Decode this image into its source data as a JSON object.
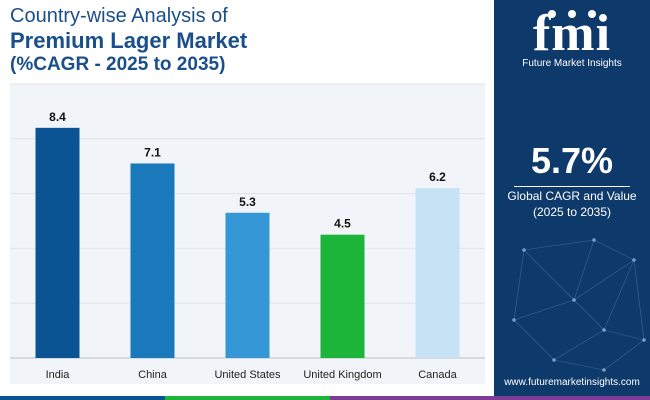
{
  "header": {
    "line1": "Country-wise Analysis of",
    "line2": "Premium Lager Market",
    "line3": "(%CAGR - 2025 to 2035)"
  },
  "chart_data": {
    "type": "bar",
    "categories": [
      "India",
      "China",
      "United States",
      "United Kingdom",
      "Canada"
    ],
    "values": [
      8.4,
      7.1,
      5.3,
      4.5,
      6.2
    ],
    "colors": [
      "#0b5494",
      "#1a79ba",
      "#3597d5",
      "#1cb53a",
      "#c6e2f4"
    ],
    "ylim": [
      0,
      10
    ],
    "grid": true
  },
  "side_panel": {
    "logo_text": "fmi",
    "logo_tagline": "Future Market Insights",
    "cagr_value": "5.7%",
    "cagr_label_line1": "Global CAGR and Value",
    "cagr_label_line2": "(2025 to 2035)",
    "website": "www.futuremarketinsights.com"
  },
  "colors": {
    "title": "#1a4f8c",
    "panel_bg": "#0e3a6b",
    "chart_bg": "#f1f4f8",
    "bottom_bar": [
      "#0b5494",
      "#1cb53a",
      "#7d3c98"
    ]
  }
}
